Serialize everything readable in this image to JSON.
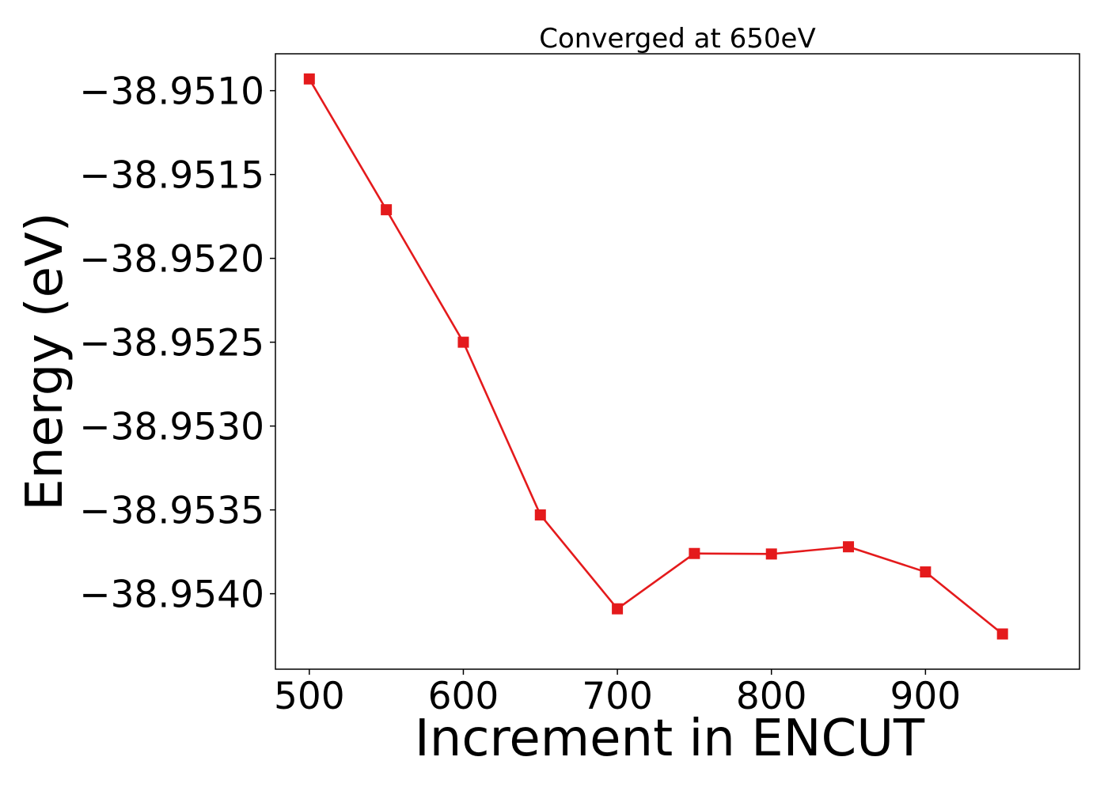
{
  "chart_data": {
    "type": "line",
    "title": "Converged at 650eV",
    "xlabel": "Increment in ENCUT",
    "ylabel": "Energy (eV)",
    "xlim": [
      478,
      1000
    ],
    "ylim": [
      -38.95445,
      -38.95078
    ],
    "x_ticks": [
      500,
      600,
      700,
      800,
      900
    ],
    "x_tick_labels": [
      "500",
      "600",
      "700",
      "800",
      "900"
    ],
    "y_ticks": [
      -38.951,
      -38.9515,
      -38.952,
      -38.9525,
      -38.953,
      -38.9535,
      -38.954
    ],
    "y_tick_labels": [
      "−38.9510",
      "−38.9515",
      "−38.9520",
      "−38.9525",
      "−38.9530",
      "−38.9535",
      "−38.9540"
    ],
    "grid": false,
    "series": [
      {
        "color": "#e41a1c",
        "marker": "square",
        "x": [
          500,
          550,
          600,
          650,
          700,
          750,
          800,
          850,
          900,
          950
        ],
        "y": [
          -38.95093,
          -38.95171,
          -38.9525,
          -38.95353,
          -38.95409,
          -38.95376,
          -38.953763,
          -38.95372,
          -38.95387,
          -38.95424
        ]
      }
    ]
  }
}
